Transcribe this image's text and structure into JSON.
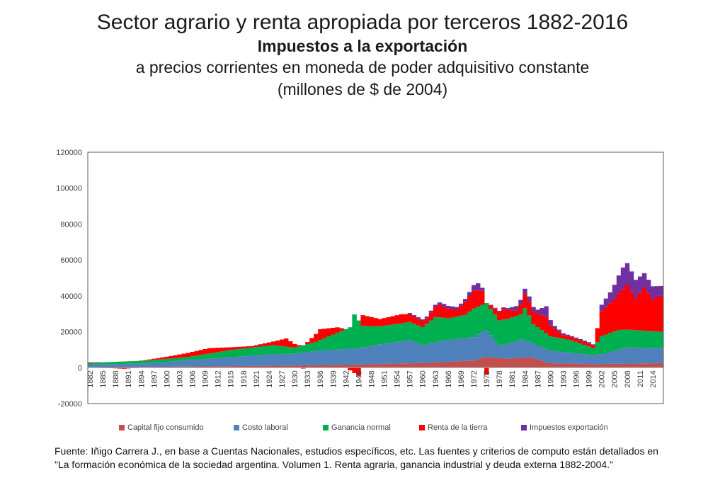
{
  "header": {
    "title": "Sector agrario y renta apropiada por terceros 1882-2016",
    "subtitle": "Impuestos a la exportación",
    "line3": "a precios corrientes en moneda de poder adquisitivo constante",
    "line4": "(millones de $ de 2004)"
  },
  "footer": {
    "source_line1": "Fuente: Iñigo Carrera J.,  en base a Cuentas Nacionales, estudios específicos, etc. Las fuentes y criterios de computo están detallados en",
    "source_line2": "\"La formación económica de la sociedad argentina. Volumen 1. Renta agraria, ganancia industrial y deuda externa 1882-2004.\""
  },
  "colors": {
    "capital": "#c0504d",
    "laboral": "#4f81bd",
    "ganancia": "#00b050",
    "renta": "#ff0000",
    "impuestos": "#7030a0"
  },
  "chart_data": {
    "type": "bar",
    "stacked": true,
    "ylim": [
      -20000,
      120000
    ],
    "yticks": [
      -20000,
      0,
      20000,
      40000,
      60000,
      80000,
      100000,
      120000
    ],
    "xlim": [
      1882,
      2016
    ],
    "xtick_labels": [
      "1882",
      "1885",
      "1888",
      "1891",
      "1894",
      "1897",
      "1900",
      "1903",
      "1906",
      "1909",
      "1912",
      "1915",
      "1918",
      "1921",
      "1924",
      "1927",
      "1930",
      "1933",
      "1936",
      "1939",
      "1942",
      "1945",
      "1948",
      "1951",
      "1954",
      "1957",
      "1960",
      "1963",
      "1966",
      "1969",
      "1972",
      "1975",
      "1978",
      "1981",
      "1984",
      "1987",
      "1990",
      "1993",
      "1996",
      "1999",
      "2002",
      "2005",
      "2008",
      "2011",
      "2014"
    ],
    "legend_position": "bottom",
    "grid": false,
    "series": [
      {
        "name": "Capital fijo consumido",
        "color_key": "capital",
        "points": [
          [
            1882,
            200
          ],
          [
            1900,
            500
          ],
          [
            1930,
            1200
          ],
          [
            1945,
            1800
          ],
          [
            1960,
            2600
          ],
          [
            1972,
            4000
          ],
          [
            1975,
            6000
          ],
          [
            1980,
            5000
          ],
          [
            1985,
            6000
          ],
          [
            1990,
            2500
          ],
          [
            2000,
            2000
          ],
          [
            2016,
            2500
          ]
        ]
      },
      {
        "name": "Costo laboral",
        "color_key": "laboral",
        "points": [
          [
            1882,
            1500
          ],
          [
            1895,
            2000
          ],
          [
            1905,
            3500
          ],
          [
            1915,
            5000
          ],
          [
            1925,
            6500
          ],
          [
            1930,
            6500
          ],
          [
            1935,
            8000
          ],
          [
            1945,
            9000
          ],
          [
            1950,
            11000
          ],
          [
            1957,
            13000
          ],
          [
            1960,
            10000
          ],
          [
            1965,
            12000
          ],
          [
            1972,
            13000
          ],
          [
            1975,
            15000
          ],
          [
            1978,
            7000
          ],
          [
            1983,
            10000
          ],
          [
            1986,
            8000
          ],
          [
            1990,
            7000
          ],
          [
            1995,
            6000
          ],
          [
            2000,
            5000
          ],
          [
            2002,
            5500
          ],
          [
            2008,
            9000
          ],
          [
            2016,
            8500
          ]
        ]
      },
      {
        "name": "Ganancia normal",
        "color_key": "ganancia",
        "points": [
          [
            1882,
            1000
          ],
          [
            1895,
            1500
          ],
          [
            1905,
            1800
          ],
          [
            1915,
            4000
          ],
          [
            1920,
            4500
          ],
          [
            1925,
            5000
          ],
          [
            1930,
            3500
          ],
          [
            1935,
            5000
          ],
          [
            1943,
            12000
          ],
          [
            1944,
            19000
          ],
          [
            1946,
            12000
          ],
          [
            1950,
            10000
          ],
          [
            1955,
            10000
          ],
          [
            1960,
            10000
          ],
          [
            1963,
            14000
          ],
          [
            1966,
            12000
          ],
          [
            1970,
            13000
          ],
          [
            1972,
            16000
          ],
          [
            1975,
            15000
          ],
          [
            1978,
            14000
          ],
          [
            1983,
            14000
          ],
          [
            1984,
            18000
          ],
          [
            1986,
            11000
          ],
          [
            1990,
            8000
          ],
          [
            1995,
            7000
          ],
          [
            2000,
            4000
          ],
          [
            2002,
            10000
          ],
          [
            2006,
            11000
          ],
          [
            2008,
            10000
          ],
          [
            2016,
            9000
          ]
        ]
      },
      {
        "name": "Renta de la tierra",
        "color_key": "renta",
        "points": [
          [
            1882,
            300
          ],
          [
            1890,
            -600
          ],
          [
            1900,
            1200
          ],
          [
            1906,
            2500
          ],
          [
            1910,
            3000
          ],
          [
            1915,
            1500
          ],
          [
            1920,
            800
          ],
          [
            1925,
            2000
          ],
          [
            1928,
            4500
          ],
          [
            1932,
            -500
          ],
          [
            1936,
            6000
          ],
          [
            1940,
            3000
          ],
          [
            1943,
            -1500
          ],
          [
            1945,
            -4500
          ],
          [
            1946,
            6000
          ],
          [
            1950,
            4000
          ],
          [
            1955,
            5000
          ],
          [
            1958,
            4000
          ],
          [
            1961,
            3000
          ],
          [
            1964,
            7000
          ],
          [
            1968,
            4000
          ],
          [
            1972,
            10000
          ],
          [
            1974,
            8000
          ],
          [
            1975,
            -4000
          ],
          [
            1976,
            2000
          ],
          [
            1979,
            6000
          ],
          [
            1982,
            3000
          ],
          [
            1984,
            8000
          ],
          [
            1986,
            7000
          ],
          [
            1989,
            9000
          ],
          [
            1990,
            6000
          ],
          [
            1993,
            2000
          ],
          [
            2000,
            1500
          ],
          [
            2002,
            14000
          ],
          [
            2005,
            18000
          ],
          [
            2008,
            25000
          ],
          [
            2010,
            18000
          ],
          [
            2012,
            24000
          ],
          [
            2014,
            18000
          ],
          [
            2016,
            20000
          ]
        ]
      },
      {
        "name": "Impuestos exportación",
        "color_key": "impuestos",
        "points": [
          [
            1882,
            0
          ],
          [
            1956,
            0
          ],
          [
            1957,
            700
          ],
          [
            1966,
            1500
          ],
          [
            1969,
            1200
          ],
          [
            1972,
            3000
          ],
          [
            1973,
            4000
          ],
          [
            1974,
            1500
          ],
          [
            1975,
            0
          ],
          [
            1980,
            1000
          ],
          [
            1982,
            2500
          ],
          [
            1985,
            3000
          ],
          [
            1987,
            2000
          ],
          [
            1989,
            6000
          ],
          [
            1990,
            3000
          ],
          [
            1991,
            1500
          ],
          [
            1995,
            500
          ],
          [
            1999,
            800
          ],
          [
            2000,
            500
          ],
          [
            2001,
            0
          ],
          [
            2002,
            3500
          ],
          [
            2004,
            6000
          ],
          [
            2007,
            12000
          ],
          [
            2008,
            12000
          ],
          [
            2010,
            10000
          ],
          [
            2012,
            8000
          ],
          [
            2014,
            7000
          ],
          [
            2016,
            5500
          ]
        ]
      }
    ]
  }
}
